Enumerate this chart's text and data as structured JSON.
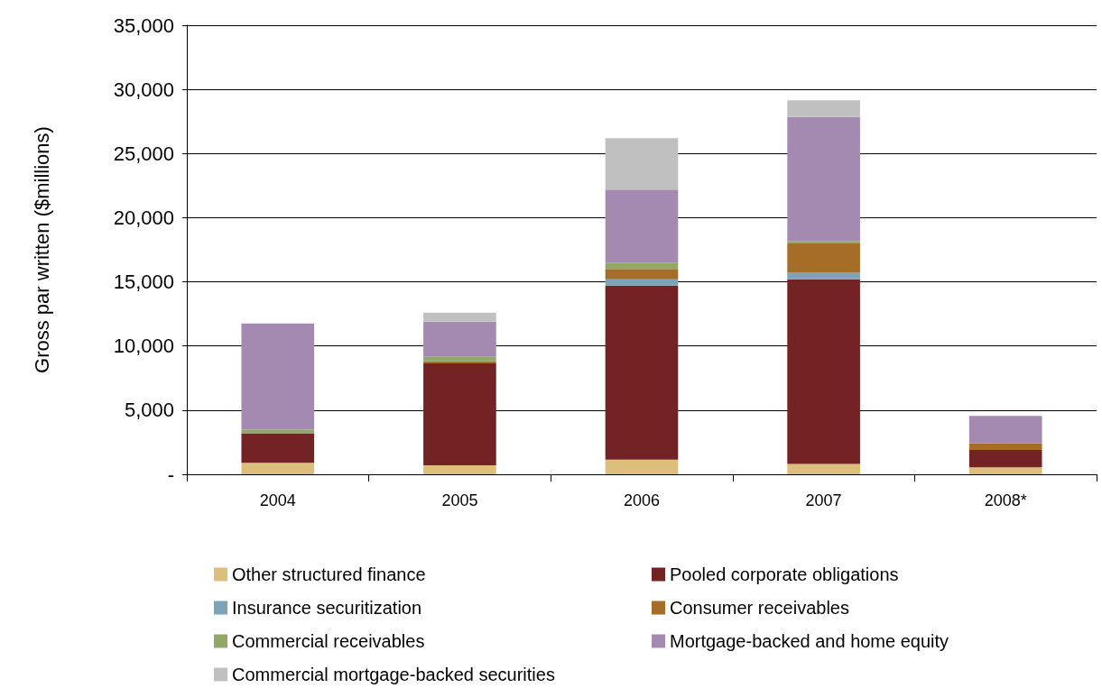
{
  "chart_data": {
    "type": "bar",
    "stacked": true,
    "ylabel": "Gross par written ($millions)",
    "categories": [
      "2004",
      "2005",
      "2006",
      "2007",
      "2008*"
    ],
    "series": [
      {
        "name": "Other structured finance",
        "color": "#dcbf7a",
        "values": [
          900,
          700,
          1150,
          800,
          550
        ]
      },
      {
        "name": "Pooled corporate obligations",
        "color": "#742324",
        "values": [
          2300,
          7950,
          13550,
          14400,
          1350
        ]
      },
      {
        "name": "Insurance securitization",
        "color": "#7fa3b8",
        "values": [
          0,
          0,
          500,
          500,
          0
        ]
      },
      {
        "name": "Consumer receivables",
        "color": "#a56d28",
        "values": [
          0,
          150,
          800,
          2300,
          500
        ]
      },
      {
        "name": "Commercial receivables",
        "color": "#93a867",
        "values": [
          300,
          350,
          500,
          150,
          0
        ]
      },
      {
        "name": "Mortgage-backed and home equity",
        "color": "#a48ab1",
        "values": [
          8250,
          2750,
          5700,
          9700,
          2150
        ]
      },
      {
        "name": "Commercial mortgage-backed securities",
        "color": "#c0c0c0",
        "values": [
          0,
          700,
          4000,
          1300,
          0
        ]
      }
    ],
    "ylim": [
      0,
      35000
    ],
    "yticks": [
      {
        "value": 0,
        "label": "-"
      },
      {
        "value": 5000,
        "label": "5,000"
      },
      {
        "value": 10000,
        "label": "10,000"
      },
      {
        "value": 15000,
        "label": "15,000"
      },
      {
        "value": 20000,
        "label": "20,000"
      },
      {
        "value": 25000,
        "label": "25,000"
      },
      {
        "value": 30000,
        "label": "30,000"
      },
      {
        "value": 35000,
        "label": "35,000"
      }
    ],
    "grid": "y",
    "legend": "bottom"
  }
}
